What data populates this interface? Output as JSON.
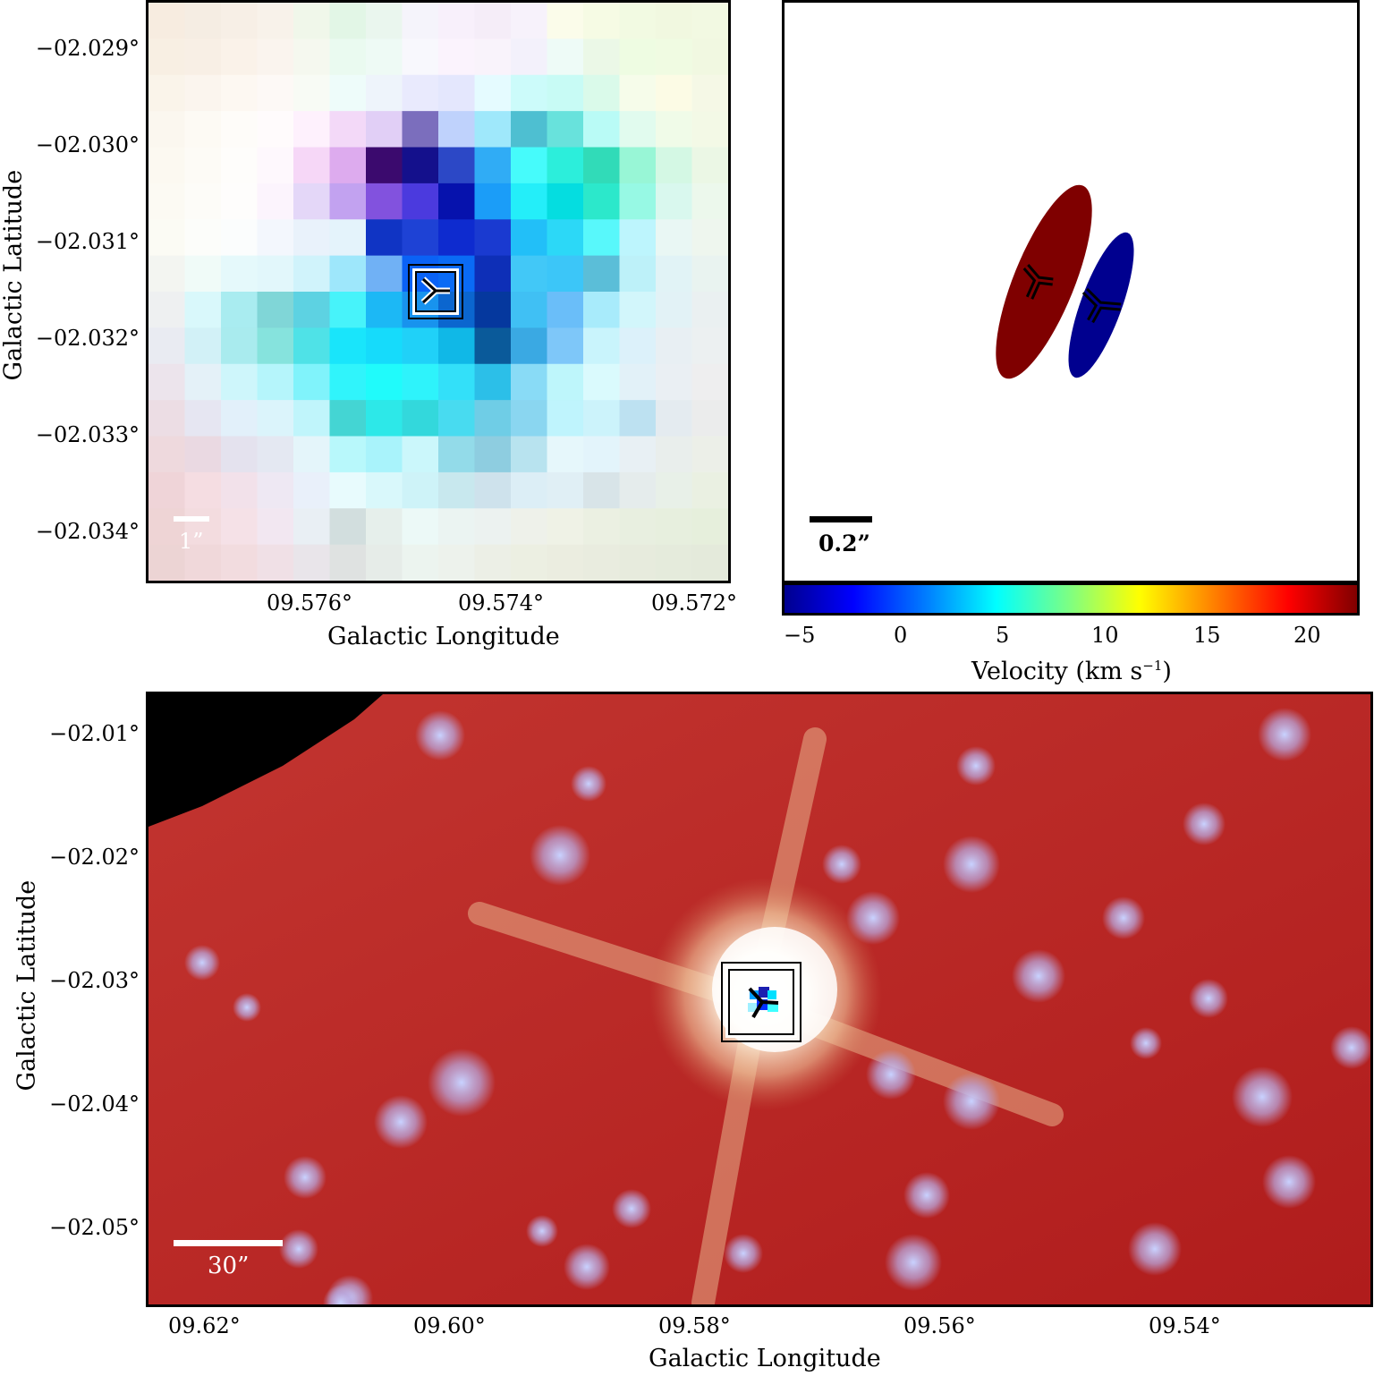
{
  "panel_a": {
    "y_ticks": [
      "−0 2.029°",
      "−02.030°",
      "−02.031°",
      "−02.032°",
      "−02.033°",
      "−02.034°"
    ],
    "x_ticks": [
      "09.576°",
      "09.574°",
      "09.572°"
    ],
    "xlabel": "Galactic Longitude",
    "ylabel": "Galactic Latitude",
    "scalebar_label": "1”"
  },
  "panel_b": {
    "scalebar_label": "0.2”",
    "colorbar_ticks": [
      "−5",
      "0",
      "5",
      "10",
      "15",
      "20"
    ],
    "colorbar_label": "Velocity (km s",
    "colorbar_label_sup": "−1",
    "colorbar_label_end": ")",
    "colors": {
      "redshifted": "#7f0000",
      "blueshifted": "#00008f"
    }
  },
  "panel_c": {
    "y_ticks": [
      "−02.01°",
      "−02.02°",
      "−02.03°",
      "−02.04°",
      "−02.05°"
    ],
    "x_ticks": [
      "09.62°",
      "09.60°",
      "09.58°",
      "09.56°",
      "09.54°"
    ],
    "xlabel": "Galactic Longitude",
    "ylabel": "Galactic Latitude",
    "scalebar_label": "30”"
  }
}
